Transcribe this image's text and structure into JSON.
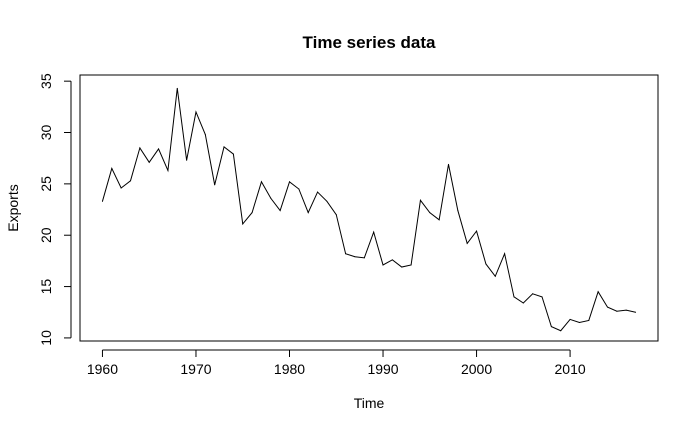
{
  "chart_data": {
    "type": "line",
    "title": "Time series data",
    "xlabel": "Time",
    "ylabel": "Exports",
    "xlim": [
      1957.6,
      2019.4
    ],
    "ylim": [
      9.7,
      35.6
    ],
    "xticks": [
      "1960",
      "1970",
      "1980",
      "1990",
      "2000",
      "2010"
    ],
    "yticks": [
      "10",
      "15",
      "20",
      "25",
      "30",
      "35"
    ],
    "grid": false,
    "series": [
      {
        "color": "#000000",
        "x": [
          1960,
          1961,
          1962,
          1963,
          1964,
          1965,
          1966,
          1967,
          1968,
          1969,
          1970,
          1971,
          1972,
          1973,
          1974,
          1975,
          1976,
          1977,
          1978,
          1979,
          1980,
          1981,
          1982,
          1983,
          1984,
          1985,
          1986,
          1987,
          1988,
          1989,
          1990,
          1991,
          1992,
          1993,
          1994,
          1995,
          1996,
          1997,
          1998,
          1999,
          2000,
          2001,
          2002,
          2003,
          2004,
          2005,
          2006,
          2007,
          2008,
          2009,
          2010,
          2011,
          2012,
          2013,
          2014,
          2015,
          2016,
          2017
        ],
        "values": [
          23.3,
          26.5,
          24.6,
          25.3,
          28.5,
          27.1,
          28.4,
          26.3,
          34.3,
          27.3,
          32.0,
          29.8,
          24.9,
          28.6,
          27.9,
          21.1,
          22.2,
          25.2,
          23.6,
          22.4,
          25.2,
          24.5,
          22.2,
          24.2,
          23.3,
          22.0,
          18.2,
          17.9,
          17.8,
          20.3,
          17.1,
          17.6,
          16.9,
          17.1,
          23.4,
          22.2,
          21.5,
          26.9,
          22.4,
          19.2,
          20.4,
          17.2,
          16.0,
          18.2,
          14.0,
          13.4,
          14.3,
          14.0,
          11.1,
          10.7,
          11.8,
          11.5,
          11.7,
          14.5,
          13.0,
          12.6,
          12.7,
          12.5
        ]
      }
    ]
  }
}
